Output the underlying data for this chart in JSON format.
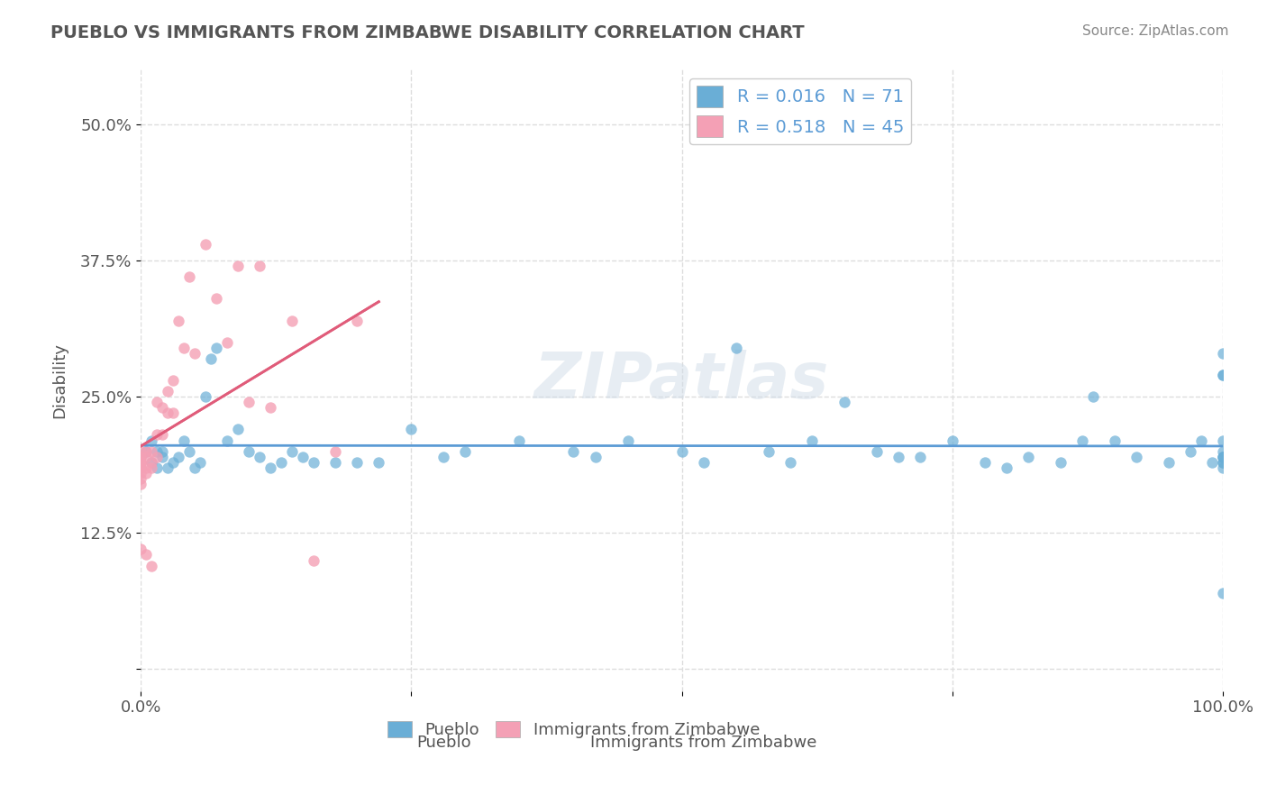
{
  "title": "PUEBLO VS IMMIGRANTS FROM ZIMBABWE DISABILITY CORRELATION CHART",
  "source": "Source: ZipAtlas.com",
  "xlabel": "",
  "ylabel": "Disability",
  "xlim": [
    0,
    1.0
  ],
  "ylim": [
    -0.02,
    0.55
  ],
  "xticks": [
    0.0,
    0.25,
    0.5,
    0.75,
    1.0
  ],
  "xticklabels": [
    "0.0%",
    "",
    "",
    "",
    "100.0%"
  ],
  "yticks": [
    0.0,
    0.125,
    0.25,
    0.375,
    0.5
  ],
  "yticklabels": [
    "",
    "12.5%",
    "25.0%",
    "37.5%",
    "50.0%"
  ],
  "legend_r1": "R = 0.016",
  "legend_n1": "N = 71",
  "legend_r2": "R = 0.518",
  "legend_n2": "N = 45",
  "blue_color": "#6aaed6",
  "pink_color": "#f4a0b5",
  "trendline1_color": "#5b9bd5",
  "trendline2_color": "#e05c7a",
  "watermark": "ZIPatlas",
  "pueblo_x": [
    0.005,
    0.01,
    0.01,
    0.015,
    0.015,
    0.02,
    0.02,
    0.025,
    0.03,
    0.035,
    0.04,
    0.045,
    0.05,
    0.055,
    0.06,
    0.065,
    0.07,
    0.08,
    0.09,
    0.1,
    0.11,
    0.12,
    0.13,
    0.14,
    0.15,
    0.16,
    0.18,
    0.2,
    0.22,
    0.25,
    0.28,
    0.3,
    0.35,
    0.4,
    0.42,
    0.45,
    0.5,
    0.52,
    0.55,
    0.58,
    0.6,
    0.62,
    0.65,
    0.68,
    0.7,
    0.72,
    0.75,
    0.78,
    0.8,
    0.82,
    0.85,
    0.87,
    0.88,
    0.9,
    0.92,
    0.95,
    0.97,
    0.98,
    0.99,
    1.0,
    1.0,
    1.0,
    1.0,
    1.0,
    1.0,
    1.0,
    1.0,
    1.0,
    1.0,
    1.0,
    1.0
  ],
  "pueblo_y": [
    0.2,
    0.19,
    0.21,
    0.2,
    0.185,
    0.195,
    0.2,
    0.185,
    0.19,
    0.195,
    0.21,
    0.2,
    0.185,
    0.19,
    0.25,
    0.285,
    0.295,
    0.21,
    0.22,
    0.2,
    0.195,
    0.185,
    0.19,
    0.2,
    0.195,
    0.19,
    0.19,
    0.19,
    0.19,
    0.22,
    0.195,
    0.2,
    0.21,
    0.2,
    0.195,
    0.21,
    0.2,
    0.19,
    0.295,
    0.2,
    0.19,
    0.21,
    0.245,
    0.2,
    0.195,
    0.195,
    0.21,
    0.19,
    0.185,
    0.195,
    0.19,
    0.21,
    0.25,
    0.21,
    0.195,
    0.19,
    0.2,
    0.21,
    0.19,
    0.27,
    0.195,
    0.21,
    0.19,
    0.27,
    0.2,
    0.195,
    0.185,
    0.19,
    0.29,
    0.195,
    0.07
  ],
  "zimbabwe_x": [
    0.0,
    0.0,
    0.0,
    0.0,
    0.0,
    0.0,
    0.0,
    0.0,
    0.0,
    0.0,
    0.0,
    0.0,
    0.005,
    0.005,
    0.005,
    0.005,
    0.005,
    0.01,
    0.01,
    0.01,
    0.01,
    0.015,
    0.015,
    0.015,
    0.02,
    0.02,
    0.025,
    0.025,
    0.03,
    0.03,
    0.035,
    0.04,
    0.045,
    0.05,
    0.06,
    0.07,
    0.08,
    0.09,
    0.1,
    0.11,
    0.12,
    0.14,
    0.16,
    0.18,
    0.2
  ],
  "zimbabwe_y": [
    0.2,
    0.195,
    0.185,
    0.19,
    0.195,
    0.185,
    0.19,
    0.185,
    0.18,
    0.175,
    0.17,
    0.11,
    0.2,
    0.195,
    0.185,
    0.18,
    0.105,
    0.2,
    0.19,
    0.185,
    0.095,
    0.245,
    0.195,
    0.215,
    0.215,
    0.24,
    0.255,
    0.235,
    0.265,
    0.235,
    0.32,
    0.295,
    0.36,
    0.29,
    0.39,
    0.34,
    0.3,
    0.37,
    0.245,
    0.37,
    0.24,
    0.32,
    0.1,
    0.2,
    0.32
  ],
  "background_color": "#ffffff",
  "grid_color": "#dddddd"
}
